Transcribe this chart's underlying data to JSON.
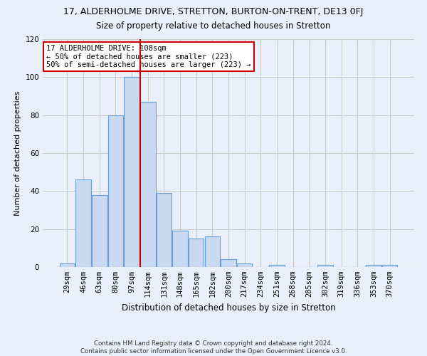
{
  "title": "17, ALDERHOLME DRIVE, STRETTON, BURTON-ON-TRENT, DE13 0FJ",
  "subtitle": "Size of property relative to detached houses in Stretton",
  "xlabel": "Distribution of detached houses by size in Stretton",
  "ylabel": "Number of detached properties",
  "bar_labels": [
    "29sqm",
    "46sqm",
    "63sqm",
    "80sqm",
    "97sqm",
    "114sqm",
    "131sqm",
    "148sqm",
    "165sqm",
    "182sqm",
    "200sqm",
    "217sqm",
    "234sqm",
    "251sqm",
    "268sqm",
    "285sqm",
    "302sqm",
    "319sqm",
    "336sqm",
    "353sqm",
    "370sqm"
  ],
  "bar_values": [
    2,
    46,
    38,
    80,
    100,
    87,
    39,
    19,
    15,
    16,
    4,
    2,
    0,
    1,
    0,
    0,
    1,
    0,
    0,
    1,
    1
  ],
  "bar_color": "#c9d9f0",
  "bar_edge_color": "#6a9ed4",
  "vline_color": "#cc0000",
  "ylim": [
    0,
    120
  ],
  "yticks": [
    0,
    20,
    40,
    60,
    80,
    100,
    120
  ],
  "annotation_title": "17 ALDERHOLME DRIVE: 108sqm",
  "annotation_line1": "← 50% of detached houses are smaller (223)",
  "annotation_line2": "50% of semi-detached houses are larger (223) →",
  "annotation_box_color": "#ffffff",
  "annotation_box_edge": "#cc0000",
  "grid_color": "#cccccc",
  "background_color": "#eaf0fb",
  "fig_background_color": "#eaf0fb",
  "footer1": "Contains HM Land Registry data © Crown copyright and database right 2024.",
  "footer2": "Contains public sector information licensed under the Open Government Licence v3.0.",
  "title_fontsize": 9,
  "subtitle_fontsize": 8.5,
  "ylabel_fontsize": 8,
  "xlabel_fontsize": 8.5,
  "tick_fontsize": 7.5,
  "annotation_fontsize": 7.5,
  "footer_fontsize": 6.2
}
